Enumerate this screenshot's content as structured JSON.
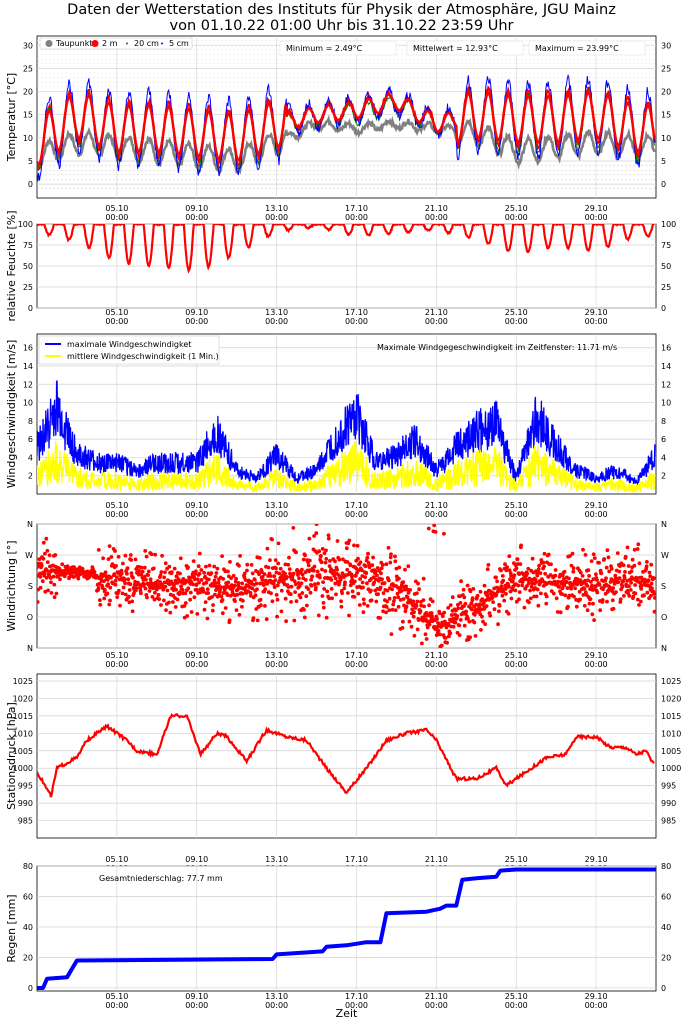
{
  "title_line1": "Daten der Wetterstation des Instituts für Physik der Atmosphäre, JGU Mainz",
  "title_line2": "von 01.10.22 01:00 Uhr bis 31.10.22 23:59 Uhr",
  "x_ticks": [
    "05.10",
    "09.10",
    "13.10",
    "17.10",
    "21.10",
    "25.10",
    "29.10"
  ],
  "x_tick_time": "00:00",
  "x_axis_label": "Zeit",
  "colors": {
    "taupunkt": "#808080",
    "t2m": "#ff0000",
    "t20cm": "#008000",
    "t5cm": "#0000ff",
    "wind_max": "#0000ff",
    "wind_mean": "#ffff00",
    "red": "#ff0000",
    "rain": "#0000ff"
  },
  "chart_data": [
    {
      "id": "temperature",
      "type": "line",
      "ylabel": "Temperatur [°C]",
      "ylim": [
        -3,
        32
      ],
      "y_ticks": [
        0,
        5,
        10,
        15,
        20,
        25,
        30
      ],
      "legend": [
        "Taupunkt",
        "2 m",
        "20 cm",
        "5 cm"
      ],
      "annotations": {
        "minimum": "Minimum = 2.49°C",
        "mean": "Mittelwert = 12.93°C",
        "maximum": "Maximum = 23.99°C"
      },
      "series": [
        {
          "name": "Taupunkt",
          "x_day": [
            1,
            3,
            5,
            7,
            9,
            11,
            13,
            15,
            17,
            19,
            21,
            23,
            25,
            27,
            29,
            31
          ],
          "values": [
            6,
            9,
            8,
            7,
            6,
            5,
            9,
            13,
            12,
            13,
            12,
            11,
            7,
            8,
            9,
            8
          ]
        },
        {
          "name": "2 m",
          "x_day": [
            1,
            3,
            5,
            7,
            9,
            11,
            13,
            15,
            17,
            19,
            21,
            23,
            25,
            27,
            29,
            31
          ],
          "values": [
            9,
            15,
            12,
            12,
            11,
            10,
            13,
            15,
            16,
            18,
            13,
            15,
            14,
            14,
            15,
            12
          ]
        },
        {
          "name": "20 cm",
          "x_day": [
            1,
            3,
            5,
            7,
            9,
            11,
            13,
            15,
            17,
            19,
            21,
            23,
            25,
            27,
            29,
            31
          ],
          "values": [
            9,
            14,
            11,
            11,
            10,
            9,
            12,
            15,
            15,
            17,
            13,
            14,
            13,
            13,
            14,
            11
          ]
        },
        {
          "name": "5 cm",
          "x_day": [
            1,
            3,
            5,
            7,
            9,
            11,
            13,
            15,
            17,
            19,
            21,
            23,
            25,
            27,
            29,
            31
          ],
          "values": [
            9,
            15,
            12,
            12,
            11,
            10,
            13,
            15,
            16,
            18,
            13,
            15,
            14,
            14,
            15,
            12
          ]
        }
      ]
    },
    {
      "id": "humidity",
      "type": "scatter",
      "ylabel": "relative Feuchte [%]",
      "ylim": [
        0,
        100
      ],
      "y_ticks": [
        0,
        25,
        50,
        75,
        100
      ],
      "series": [
        {
          "name": "",
          "x_day": [
            1,
            3,
            5,
            7,
            9,
            11,
            13,
            15,
            17,
            19,
            21,
            23,
            25,
            27,
            29,
            31
          ],
          "values": [
            95,
            88,
            75,
            72,
            68,
            80,
            95,
            98,
            92,
            94,
            96,
            90,
            80,
            85,
            82,
            92
          ]
        }
      ]
    },
    {
      "id": "wind_speed",
      "type": "line",
      "ylabel": "Windgeschwindigkeit [m/s]",
      "ylim": [
        0,
        17.5
      ],
      "y_ticks": [
        2,
        4,
        6,
        8,
        10,
        12,
        14,
        16
      ],
      "legend": [
        "maximale Windgeschwindigket",
        "mittlere Windgeschwindigkeit (1 Min.)"
      ],
      "annotation": "Maximale Windgegeschwindigkeit im Zeitfenster: 11.71 m/s",
      "series": [
        {
          "name": "maximale Windgeschwindigket",
          "x_day": [
            1,
            2,
            3,
            4,
            5,
            6,
            7,
            8,
            9,
            10,
            11,
            12,
            13,
            14,
            15,
            16,
            17,
            18,
            19,
            20,
            21,
            22,
            23,
            24,
            25,
            26,
            27,
            28,
            29,
            30,
            31,
            32
          ],
          "values": [
            6,
            11,
            5,
            4,
            4,
            3,
            4,
            4,
            4,
            8,
            3,
            2,
            5,
            2,
            3,
            7,
            10,
            4,
            5,
            7,
            3,
            6,
            8,
            9,
            2,
            10,
            6,
            3,
            2,
            3,
            1.5,
            5
          ]
        },
        {
          "name": "mittlere Windgeschwindigkeit (1 Min.)",
          "x_day": [
            1,
            2,
            3,
            4,
            5,
            6,
            7,
            8,
            9,
            10,
            11,
            12,
            13,
            14,
            15,
            16,
            17,
            18,
            19,
            20,
            21,
            22,
            23,
            24,
            25,
            26,
            27,
            28,
            29,
            30,
            31,
            32
          ],
          "values": [
            3,
            5,
            2.5,
            2,
            2,
            1.5,
            2,
            2,
            2,
            4,
            1.5,
            1,
            2.5,
            1,
            1.5,
            3.5,
            5,
            2,
            2.5,
            3.5,
            1.5,
            3,
            4,
            4.5,
            1,
            5,
            3,
            1.5,
            1,
            1.5,
            0.8,
            2.5
          ]
        }
      ]
    },
    {
      "id": "wind_direction",
      "type": "scatter",
      "ylabel": "Windrichtung [°]",
      "y_ticks": [
        "N",
        "O",
        "S",
        "W",
        "N"
      ],
      "series": [
        {
          "name": "",
          "x_day": [
            1,
            3,
            5,
            7,
            9,
            11,
            13,
            15,
            17,
            19,
            21,
            23,
            25,
            27,
            29,
            31
          ],
          "values": [
            225,
            220,
            200,
            180,
            190,
            170,
            200,
            230,
            210,
            180,
            60,
            120,
            200,
            190,
            180,
            200
          ]
        }
      ]
    },
    {
      "id": "pressure",
      "type": "line",
      "ylabel": "Stationsdruck [hPa]",
      "ylim": [
        980,
        1027
      ],
      "y_ticks": [
        985,
        990,
        995,
        1000,
        1005,
        1010,
        1015,
        1020,
        1025
      ],
      "series": [
        {
          "name": "",
          "x_day": [
            1,
            1.7,
            2,
            3,
            3.5,
            4.5,
            5.5,
            6,
            7,
            7.7,
            8.5,
            9.2,
            10,
            10.5,
            11.5,
            12.5,
            13.5,
            14.5,
            15.5,
            16.5,
            17.5,
            18.5,
            19.5,
            20.5,
            21,
            22,
            23,
            24,
            24.5,
            25.5,
            26.5,
            27.5,
            28,
            29,
            29.7,
            30.5,
            31,
            31.5,
            32
          ],
          "values": [
            999,
            992,
            1000,
            1003,
            1008,
            1012,
            1008,
            1005,
            1004,
            1015,
            1015,
            1004,
            1010,
            1009,
            1002,
            1011,
            1009,
            1008,
            1000,
            993,
            1000,
            1008,
            1010,
            1011,
            1008,
            997,
            997,
            1000,
            995,
            999,
            1003,
            1004,
            1009,
            1009,
            1006,
            1006,
            1004,
            1005,
            1000
          ]
        }
      ]
    },
    {
      "id": "rain",
      "type": "line",
      "ylabel": "Regen [mm]",
      "ylim": [
        -2,
        80
      ],
      "y_ticks": [
        0,
        20,
        40,
        60,
        80
      ],
      "annotation": "Gesamtniederschlag: 77.7 mm",
      "series": [
        {
          "name": "",
          "x_day": [
            1,
            1.3,
            1.5,
            2.5,
            3,
            8,
            12.8,
            13,
            15.3,
            15.5,
            16.5,
            17.5,
            18.2,
            18.5,
            20.5,
            21.2,
            21.5,
            22,
            22.3,
            23,
            24,
            24.2,
            25,
            32
          ],
          "values": [
            0,
            0,
            6,
            7,
            18,
            18.5,
            19,
            22,
            24,
            27,
            28,
            30,
            30,
            49,
            50,
            52,
            54,
            54,
            71,
            72,
            73,
            77,
            77.7,
            77.7
          ]
        }
      ]
    }
  ]
}
